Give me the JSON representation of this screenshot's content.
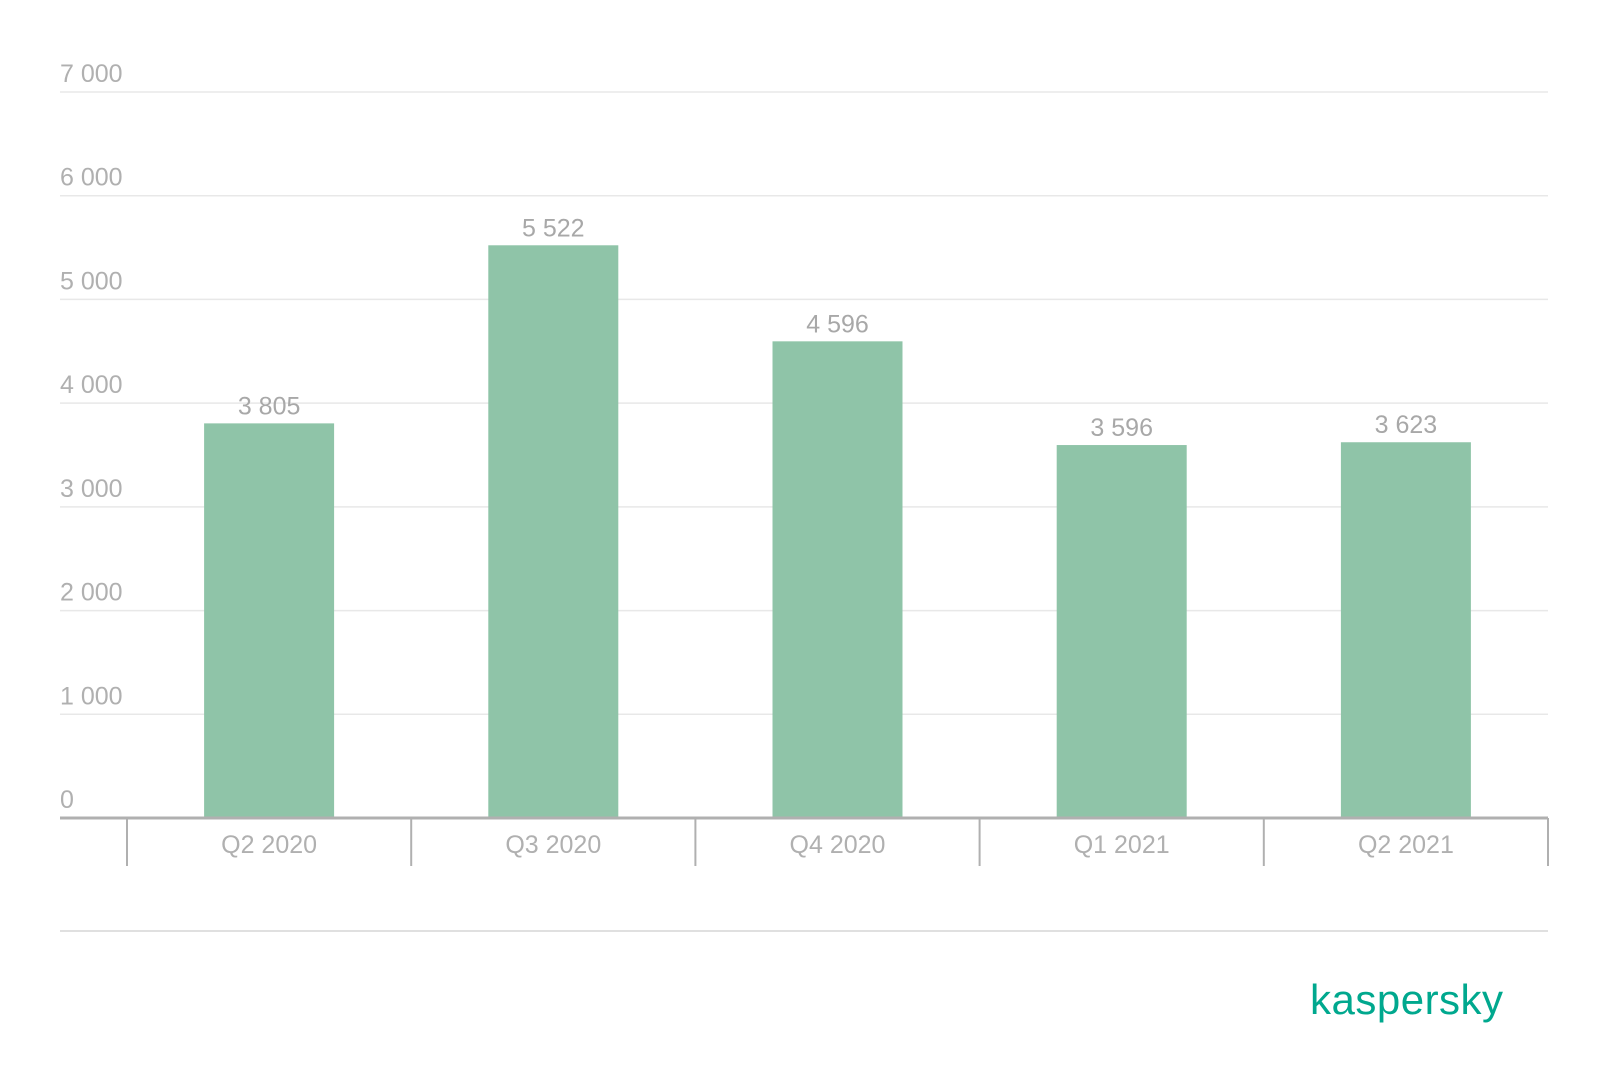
{
  "brand": {
    "logo_text": "kaspersky",
    "logo_color": "#00a88e"
  },
  "chart_data": {
    "type": "bar",
    "categories": [
      "Q2 2020",
      "Q3 2020",
      "Q4 2020",
      "Q1 2021",
      "Q2 2021"
    ],
    "values": [
      3805,
      5522,
      4596,
      3596,
      3623
    ],
    "value_labels": [
      "3 805",
      "5 522",
      "4 596",
      "3 596",
      "3 623"
    ],
    "y_ticks": [
      0,
      1000,
      2000,
      3000,
      4000,
      5000,
      6000,
      7000
    ],
    "y_tick_labels": [
      "0",
      "1 000",
      "2 000",
      "3 000",
      "4 000",
      "5 000",
      "6 000",
      "7 000"
    ],
    "ylim": [
      0,
      7000
    ],
    "title": "",
    "xlabel": "",
    "ylabel": "",
    "grid": true,
    "legend": "none",
    "bar_color": "#8fc4a8",
    "grid_color": "#e8e8e8",
    "axis_color": "#b0b0b0",
    "text_color": "#b0b0b0"
  }
}
